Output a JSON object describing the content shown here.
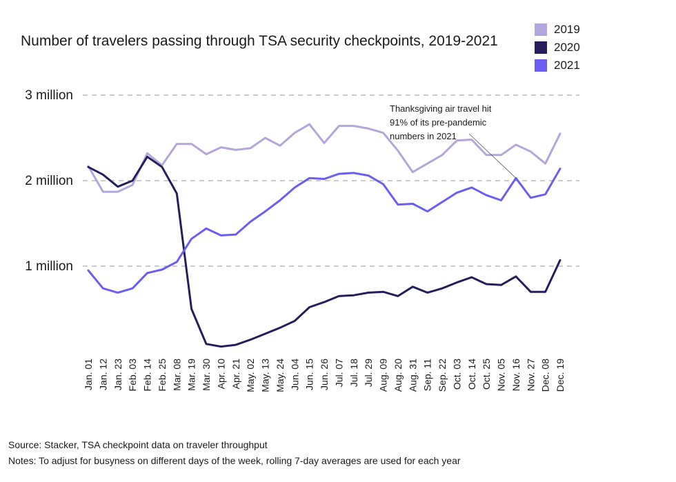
{
  "title": "Number of travelers passing through TSA security checkpoints, 2019-2021",
  "source": "Source:  Stacker, TSA checkpoint data on traveler throughput",
  "notes": "Notes: To adjust for busyness on different days of the week, rolling 7-day averages are used for each year",
  "annotation": [
    "Thanksgiving air travel hit",
    "91% of its pre-pandemic",
    "numbers in 2021"
  ],
  "chart_data": {
    "type": "line",
    "x": [
      "Jan. 01",
      "Jan. 12",
      "Jan. 23",
      "Feb. 03",
      "Feb. 14",
      "Feb. 25",
      "Mar. 08",
      "Mar. 19",
      "Mar. 30",
      "Apr. 10",
      "Apr. 21",
      "May. 02",
      "May. 13",
      "May. 24",
      "Jun. 04",
      "Jun. 15",
      "Jun. 26",
      "Jul. 07",
      "Jul. 18",
      "Jul. 29",
      "Aug. 09",
      "Aug. 20",
      "Aug. 31",
      "Sep. 11",
      "Sep. 22",
      "Oct. 03",
      "Oct. 14",
      "Oct. 25",
      "Nov. 05",
      "Nov. 16",
      "Nov. 27",
      "Dec. 08",
      "Dec. 19"
    ],
    "ytick_labels": [
      "1 million",
      "2 million",
      "3  million"
    ],
    "ytick_values": [
      1000000,
      2000000,
      3000000
    ],
    "ylim": [
      0,
      3000000
    ],
    "grid": "horizontal dashed",
    "legend_position": "top-right",
    "series": [
      {
        "name": "2019",
        "color": "#b3a6db",
        "values": [
          2170000,
          1870000,
          1870000,
          1950000,
          2320000,
          2180000,
          2430000,
          2430000,
          2310000,
          2390000,
          2360000,
          2380000,
          2500000,
          2410000,
          2560000,
          2660000,
          2440000,
          2640000,
          2640000,
          2610000,
          2560000,
          2350000,
          2100000,
          2200000,
          2300000,
          2470000,
          2480000,
          2300000,
          2300000,
          2420000,
          2340000,
          2200000,
          2550000
        ]
      },
      {
        "name": "2020",
        "color": "#241f5c",
        "values": [
          2160000,
          2070000,
          1930000,
          2000000,
          2280000,
          2160000,
          1850000,
          500000,
          90000,
          60000,
          80000,
          140000,
          210000,
          280000,
          360000,
          520000,
          580000,
          650000,
          660000,
          690000,
          700000,
          650000,
          760000,
          690000,
          740000,
          810000,
          870000,
          790000,
          780000,
          880000,
          700000,
          700000,
          1070000
        ]
      },
      {
        "name": "2021",
        "color": "#6a5ef2",
        "values": [
          950000,
          740000,
          690000,
          740000,
          920000,
          960000,
          1050000,
          1320000,
          1440000,
          1360000,
          1370000,
          1520000,
          1640000,
          1770000,
          1920000,
          2030000,
          2020000,
          2080000,
          2090000,
          2060000,
          1960000,
          1720000,
          1730000,
          1640000,
          1750000,
          1860000,
          1920000,
          1830000,
          1770000,
          2030000,
          1800000,
          1840000,
          2140000
        ]
      }
    ]
  }
}
